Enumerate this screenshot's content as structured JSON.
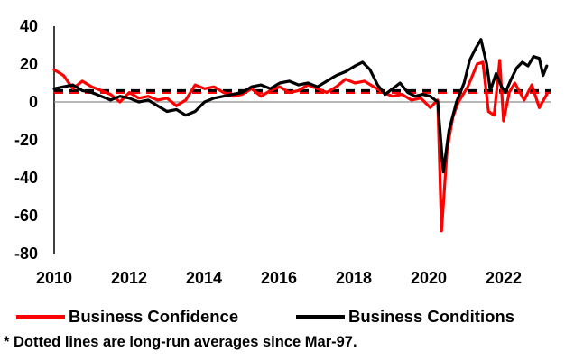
{
  "chart_data": {
    "type": "line",
    "xlim": [
      2010,
      2023.2
    ],
    "ylim": [
      -80,
      40
    ],
    "x_ticks": [
      "2010",
      "2012",
      "2014",
      "2016",
      "2018",
      "2020",
      "2022"
    ],
    "y_ticks": [
      "40",
      "20",
      "0",
      "-20",
      "-40",
      "-60",
      "-80"
    ],
    "grid": false,
    "legend_position": "bottom",
    "series": [
      {
        "name": "Business Confidence",
        "color": "#ff0000",
        "average": 5,
        "points": [
          [
            2010.0,
            17
          ],
          [
            2010.25,
            14
          ],
          [
            2010.5,
            7
          ],
          [
            2010.75,
            11
          ],
          [
            2011.0,
            8
          ],
          [
            2011.25,
            6
          ],
          [
            2011.5,
            4
          ],
          [
            2011.75,
            0
          ],
          [
            2012.0,
            5
          ],
          [
            2012.25,
            2
          ],
          [
            2012.5,
            3
          ],
          [
            2012.75,
            1
          ],
          [
            2013.0,
            2
          ],
          [
            2013.25,
            -2
          ],
          [
            2013.5,
            1
          ],
          [
            2013.75,
            9
          ],
          [
            2014.0,
            7
          ],
          [
            2014.25,
            8
          ],
          [
            2014.5,
            5
          ],
          [
            2014.75,
            3
          ],
          [
            2015.0,
            4
          ],
          [
            2015.25,
            7
          ],
          [
            2015.5,
            3
          ],
          [
            2015.75,
            6
          ],
          [
            2016.0,
            8
          ],
          [
            2016.25,
            5
          ],
          [
            2016.5,
            6
          ],
          [
            2016.75,
            9
          ],
          [
            2017.0,
            7
          ],
          [
            2017.25,
            5
          ],
          [
            2017.5,
            8
          ],
          [
            2017.75,
            12
          ],
          [
            2018.0,
            10
          ],
          [
            2018.25,
            11
          ],
          [
            2018.5,
            8
          ],
          [
            2018.75,
            5
          ],
          [
            2019.0,
            3
          ],
          [
            2019.25,
            4
          ],
          [
            2019.5,
            1
          ],
          [
            2019.75,
            2
          ],
          [
            2020.0,
            -3
          ],
          [
            2020.2,
            1
          ],
          [
            2020.3,
            -68
          ],
          [
            2020.45,
            -25
          ],
          [
            2020.6,
            -8
          ],
          [
            2020.75,
            0
          ],
          [
            2021.0,
            8
          ],
          [
            2021.25,
            20
          ],
          [
            2021.4,
            21
          ],
          [
            2021.55,
            -5
          ],
          [
            2021.7,
            -7
          ],
          [
            2021.85,
            22
          ],
          [
            2021.95,
            -10
          ],
          [
            2022.1,
            5
          ],
          [
            2022.25,
            10
          ],
          [
            2022.5,
            1
          ],
          [
            2022.7,
            9
          ],
          [
            2022.9,
            -3
          ],
          [
            2023.1,
            4
          ]
        ]
      },
      {
        "name": "Business Conditions",
        "color": "#000000",
        "average": 6,
        "points": [
          [
            2010.0,
            7
          ],
          [
            2010.25,
            8
          ],
          [
            2010.5,
            9
          ],
          [
            2010.75,
            6
          ],
          [
            2011.0,
            5
          ],
          [
            2011.25,
            3
          ],
          [
            2011.5,
            1
          ],
          [
            2011.75,
            3
          ],
          [
            2012.0,
            2
          ],
          [
            2012.25,
            0
          ],
          [
            2012.5,
            1
          ],
          [
            2012.75,
            -2
          ],
          [
            2013.0,
            -5
          ],
          [
            2013.25,
            -4
          ],
          [
            2013.5,
            -7
          ],
          [
            2013.75,
            -5
          ],
          [
            2014.0,
            0
          ],
          [
            2014.25,
            2
          ],
          [
            2014.5,
            3
          ],
          [
            2014.75,
            4
          ],
          [
            2015.0,
            5
          ],
          [
            2015.25,
            8
          ],
          [
            2015.5,
            9
          ],
          [
            2015.75,
            7
          ],
          [
            2016.0,
            10
          ],
          [
            2016.25,
            11
          ],
          [
            2016.5,
            9
          ],
          [
            2016.75,
            10
          ],
          [
            2017.0,
            8
          ],
          [
            2017.25,
            11
          ],
          [
            2017.5,
            14
          ],
          [
            2017.75,
            16
          ],
          [
            2018.0,
            19
          ],
          [
            2018.2,
            21
          ],
          [
            2018.4,
            17
          ],
          [
            2018.6,
            9
          ],
          [
            2018.8,
            4
          ],
          [
            2019.0,
            7
          ],
          [
            2019.2,
            10
          ],
          [
            2019.4,
            5
          ],
          [
            2019.6,
            3
          ],
          [
            2019.8,
            4
          ],
          [
            2020.0,
            3
          ],
          [
            2020.2,
            0
          ],
          [
            2020.35,
            -37
          ],
          [
            2020.5,
            -15
          ],
          [
            2020.7,
            0
          ],
          [
            2020.9,
            10
          ],
          [
            2021.05,
            22
          ],
          [
            2021.2,
            28
          ],
          [
            2021.35,
            33
          ],
          [
            2021.5,
            20
          ],
          [
            2021.6,
            6
          ],
          [
            2021.75,
            15
          ],
          [
            2021.9,
            8
          ],
          [
            2022.0,
            5
          ],
          [
            2022.15,
            12
          ],
          [
            2022.3,
            18
          ],
          [
            2022.45,
            21
          ],
          [
            2022.6,
            19
          ],
          [
            2022.75,
            24
          ],
          [
            2022.9,
            23
          ],
          [
            2023.0,
            14
          ],
          [
            2023.1,
            19
          ]
        ]
      }
    ],
    "footnote": "* Dotted lines are long-run averages since Mar-97."
  }
}
